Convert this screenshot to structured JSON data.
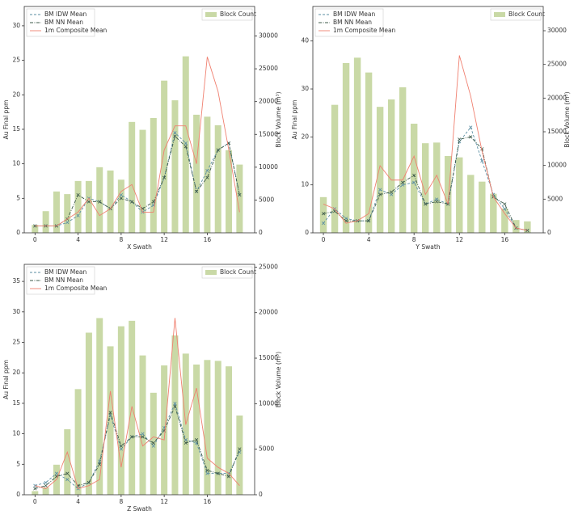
{
  "chart_data": [
    {
      "type": "combo",
      "xlabel": "X Swath",
      "ylabel": "Au Final ppm",
      "y2label": "Block Volume (m³)",
      "x": [
        0,
        1,
        2,
        3,
        4,
        5,
        6,
        7,
        8,
        9,
        10,
        11,
        12,
        13,
        14,
        15,
        16,
        17,
        18,
        19
      ],
      "xlim": [
        -1,
        20.4
      ],
      "xticks": [
        0,
        4,
        8,
        12,
        16
      ],
      "ylim": [
        0,
        32.8
      ],
      "yticks": [
        0,
        5,
        10,
        15,
        20,
        25,
        30
      ],
      "y2lim": [
        0,
        34500
      ],
      "y2ticks": [
        0,
        5000,
        10000,
        15000,
        20000,
        25000,
        30000
      ],
      "legend": "upper left",
      "legend2": "upper right",
      "series": [
        {
          "name": "Block Count",
          "type": "bar",
          "axis": "y2",
          "color": "#c9d9a6",
          "values": [
            1200,
            3300,
            6300,
            5900,
            7900,
            7900,
            10000,
            9500,
            8100,
            16900,
            15700,
            17500,
            23200,
            20200,
            26900,
            18000,
            17700,
            16400,
            12600,
            10400
          ]
        },
        {
          "name": "BM IDW Mean",
          "type": "line",
          "color": "#5b8fa3",
          "linestyle": "dashed",
          "marker": "x",
          "values": [
            1,
            1,
            1,
            1.5,
            2.5,
            5,
            4.5,
            3.5,
            5.5,
            4.5,
            3,
            4,
            8,
            14.5,
            13,
            6,
            9,
            12,
            13,
            5.5
          ]
        },
        {
          "name": "BM NN Mean",
          "type": "line",
          "color": "#3d5a4a",
          "linestyle": "dashdot",
          "marker": "x",
          "values": [
            1,
            1,
            1,
            2,
            5.5,
            4.5,
            4.5,
            3.5,
            5,
            4.5,
            3.5,
            4.5,
            8,
            14,
            12.5,
            6,
            8,
            12,
            13,
            5.5
          ]
        },
        {
          "name": "1m Composite Mean",
          "type": "line",
          "color": "#f08070",
          "linestyle": "solid",
          "marker": "none",
          "values": [
            1,
            1,
            1,
            2,
            3,
            5,
            2.5,
            3.5,
            6,
            7,
            3,
            3,
            12,
            15.5,
            15.5,
            10,
            25.5,
            20.5,
            12,
            3
          ]
        }
      ]
    },
    {
      "type": "combo",
      "xlabel": "Y Swath",
      "ylabel": "Au Final ppm",
      "y2label": "Block Volume (m³)",
      "x": [
        0,
        1,
        2,
        3,
        4,
        5,
        6,
        7,
        8,
        9,
        10,
        11,
        12,
        13,
        14,
        15,
        16,
        17,
        18
      ],
      "xlim": [
        -0.93,
        19.4
      ],
      "xticks": [
        0,
        4,
        8,
        12,
        16
      ],
      "ylim": [
        0,
        47.2
      ],
      "yticks": [
        0,
        10,
        20,
        30,
        40
      ],
      "y2lim": [
        0,
        33600
      ],
      "y2ticks": [
        0,
        5000,
        10000,
        15000,
        20000,
        25000,
        30000
      ],
      "legend": "upper left",
      "legend2": "upper right",
      "series": [
        {
          "name": "Block Count",
          "type": "bar",
          "axis": "y2",
          "color": "#c9d9a6",
          "values": [
            5300,
            19000,
            25200,
            26000,
            23800,
            18700,
            19800,
            21600,
            16200,
            13300,
            13400,
            11400,
            11200,
            8600,
            7600,
            5800,
            3600,
            1900,
            1700
          ]
        },
        {
          "name": "BM IDW Mean",
          "type": "line",
          "color": "#5b8fa3",
          "linestyle": "dashed",
          "marker": "x",
          "values": [
            2,
            5,
            3,
            2.5,
            2.5,
            9,
            8,
            10,
            10.5,
            6,
            7,
            6,
            19,
            22,
            15,
            8,
            5,
            1,
            0.5
          ]
        },
        {
          "name": "BM NN Mean",
          "type": "line",
          "color": "#3d5a4a",
          "linestyle": "dashdot",
          "marker": "x",
          "values": [
            4,
            4.5,
            2.5,
            2.5,
            2.5,
            8,
            8.5,
            10.5,
            12,
            6,
            6.5,
            6,
            19.5,
            20,
            17.5,
            7.5,
            6,
            1,
            0.5
          ]
        },
        {
          "name": "1m Composite Mean",
          "type": "line",
          "color": "#f08070",
          "linestyle": "solid",
          "marker": "none",
          "values": [
            6,
            5,
            2,
            2.5,
            4,
            14,
            11,
            11,
            16,
            8,
            12,
            6,
            37,
            28.5,
            17,
            7.5,
            4,
            1,
            0.5
          ]
        }
      ]
    },
    {
      "type": "combo",
      "xlabel": "Z Swath",
      "ylabel": "Au Final ppm",
      "y2label": "Block Volume (m³)",
      "x": [
        0,
        1,
        2,
        3,
        4,
        5,
        6,
        7,
        8,
        9,
        10,
        11,
        12,
        13,
        14,
        15,
        16,
        17,
        18,
        19
      ],
      "xlim": [
        -1,
        20.4
      ],
      "xticks": [
        0,
        4,
        8,
        12,
        16
      ],
      "ylim": [
        0,
        37.8
      ],
      "yticks": [
        0,
        5,
        10,
        15,
        20,
        25,
        30,
        35
      ],
      "y2lim": [
        0,
        25300
      ],
      "y2ticks": [
        0,
        5000,
        10000,
        15000,
        20000,
        25000
      ],
      "legend": "upper left",
      "legend2": "upper right",
      "series": [
        {
          "name": "Block Count",
          "type": "bar",
          "axis": "y2",
          "color": "#c9d9a6",
          "values": [
            400,
            800,
            3300,
            7200,
            11600,
            17800,
            19400,
            16300,
            18500,
            19100,
            15300,
            11200,
            14200,
            17500,
            15500,
            14300,
            14800,
            14700,
            14100,
            8700
          ]
        },
        {
          "name": "BM IDW Mean",
          "type": "line",
          "color": "#5b8fa3",
          "linestyle": "dashed",
          "marker": "x",
          "values": [
            1.5,
            2,
            3.5,
            2.5,
            1,
            2,
            5.5,
            13,
            7.5,
            9.5,
            10,
            8,
            11,
            15,
            9,
            8.5,
            3.5,
            3.5,
            3.5,
            7
          ]
        },
        {
          "name": "BM NN Mean",
          "type": "line",
          "color": "#3d5a4a",
          "linestyle": "dashdot",
          "marker": "x",
          "values": [
            1,
            1.5,
            3,
            3.5,
            1.5,
            2,
            5,
            13.5,
            8,
            9.5,
            9.5,
            8.5,
            10.5,
            14.5,
            8.5,
            9,
            4,
            3.5,
            3,
            7.5
          ]
        },
        {
          "name": "1m Composite Mean",
          "type": "line",
          "color": "#f08070",
          "linestyle": "solid",
          "marker": "none",
          "values": [
            1.5,
            1,
            2.5,
            7,
            1,
            1.5,
            2.5,
            17,
            4.5,
            14.5,
            8,
            9.5,
            9,
            29,
            11.5,
            17.5,
            6,
            4.5,
            3.5,
            1.5
          ]
        }
      ]
    }
  ]
}
